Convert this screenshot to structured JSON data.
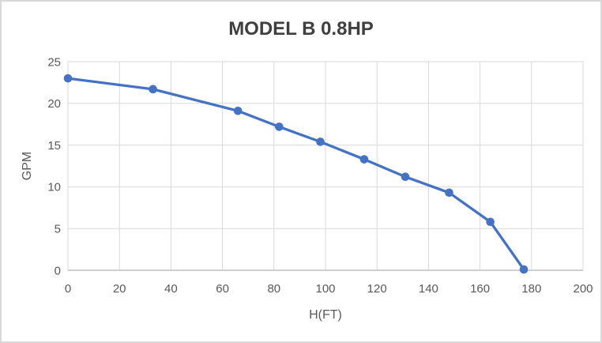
{
  "window": {
    "background": "#FFFFFF",
    "border_color": "#D9D9D9"
  },
  "chart_data": {
    "type": "line",
    "title": "MODEL B 0.8HP",
    "xlabel": "H(FT)",
    "ylabel": "GPM",
    "series": [
      {
        "name": "MODEL B 0.8HP",
        "x": [
          0,
          33,
          66,
          82,
          98,
          115,
          131,
          148,
          164,
          177
        ],
        "y": [
          23,
          21.7,
          19.1,
          17.2,
          15.4,
          13.3,
          11.2,
          9.3,
          5.8,
          0.1
        ]
      }
    ],
    "xlim": [
      0,
      200
    ],
    "ylim": [
      0,
      25
    ],
    "x_ticks": [
      0,
      20,
      40,
      60,
      80,
      100,
      120,
      140,
      160,
      180,
      200
    ],
    "y_ticks": [
      0,
      5,
      10,
      15,
      20,
      25
    ],
    "grid": true,
    "legend": "none",
    "line_color": "#4472C4",
    "marker": "circle",
    "marker_color": "#4472C4",
    "marker_radius": 5.3,
    "line_width": 3.3,
    "gridline_color": "#D9D9D9",
    "axis_line_color": "#BFBFBF",
    "tick_label_color": "#595959",
    "axis_title_color": "#595959",
    "title_color": "#3F3F3F"
  }
}
